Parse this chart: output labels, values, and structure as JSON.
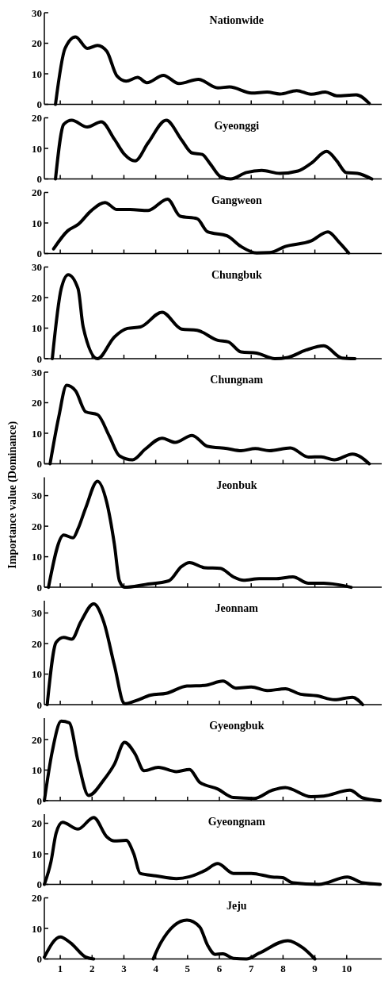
{
  "chart_data": [
    {
      "type": "line",
      "title": "Nationwide",
      "color": "#000000",
      "xlim": [
        0.5,
        11.1
      ],
      "xticks": [
        1,
        2,
        3,
        4,
        5,
        6,
        7,
        8,
        9,
        10
      ],
      "ylim": [
        0,
        30
      ],
      "yticks": [
        0,
        10,
        20,
        30
      ],
      "tick_labels": "y",
      "x": [
        0.85,
        1.15,
        1.48,
        1.85,
        2.17,
        2.46,
        2.78,
        3.07,
        3.43,
        3.72,
        4.24,
        4.73,
        5.34,
        5.95,
        6.32,
        7.01,
        7.5,
        7.9,
        8.43,
        8.88,
        9.33,
        9.69,
        10.3,
        10.71
      ],
      "values": [
        0,
        18.3,
        22.1,
        18.3,
        19.3,
        17.4,
        9.3,
        7.6,
        8.8,
        7.1,
        9.5,
        6.8,
        8.2,
        5.4,
        5.7,
        3.7,
        4.0,
        3.4,
        4.5,
        3.3,
        4.0,
        2.8,
        3.1,
        0.3
      ]
    },
    {
      "type": "line",
      "title": "Gyeonggi",
      "color": "#000000",
      "xlim": [
        0.5,
        11.1
      ],
      "xticks": [
        1,
        2,
        3,
        4,
        5,
        6,
        7,
        8,
        9,
        10
      ],
      "ylim": [
        0,
        20
      ],
      "yticks": [
        0,
        10,
        20
      ],
      "tick_labels": "y",
      "x": [
        0.85,
        1.11,
        1.36,
        1.85,
        2.29,
        2.7,
        3.02,
        3.35,
        3.76,
        4.33,
        4.81,
        5.14,
        5.46,
        5.7,
        6.03,
        6.35,
        6.85,
        7.33,
        7.9,
        8.47,
        8.88,
        9.37,
        9.69,
        9.98,
        10.34,
        10.79
      ],
      "values": [
        0,
        17.9,
        19.2,
        17,
        18.7,
        13,
        8,
        5.9,
        11.8,
        19.2,
        12.8,
        8.5,
        8,
        5.1,
        0.8,
        0,
        2.1,
        2.8,
        1.8,
        2.6,
        5.1,
        9,
        5.9,
        2.1,
        1.8,
        0
      ]
    },
    {
      "type": "line",
      "title": "Gangweon",
      "color": "#000000",
      "xlim": [
        0.5,
        11.1
      ],
      "xticks": [
        1,
        2,
        3,
        4,
        5,
        6,
        7,
        8,
        9,
        10
      ],
      "ylim": [
        0,
        20
      ],
      "yticks": [
        0,
        10,
        20
      ],
      "tick_labels": "y",
      "x": [
        0.79,
        1.24,
        1.56,
        1.97,
        2.41,
        2.78,
        3.19,
        3.76,
        4.37,
        4.77,
        5.3,
        5.63,
        6.24,
        6.68,
        7.17,
        7.58,
        8.07,
        8.88,
        9.41,
        9.77,
        10.06
      ],
      "values": [
        1.5,
        7.5,
        9.5,
        14,
        16.7,
        14.4,
        14.4,
        14.1,
        17.8,
        12.2,
        11.4,
        7.1,
        5.8,
        2.3,
        0.2,
        0.3,
        2.3,
        4.1,
        7.1,
        3.6,
        0.2
      ]
    },
    {
      "type": "line",
      "title": "Chungbuk",
      "color": "#000000",
      "xlim": [
        0.5,
        11.1
      ],
      "xticks": [
        1,
        2,
        3,
        4,
        5,
        6,
        7,
        8,
        9,
        10
      ],
      "ylim": [
        0,
        30
      ],
      "yticks": [
        0,
        10,
        20,
        30
      ],
      "tick_labels": "y",
      "x": [
        0.75,
        1.03,
        1.25,
        1.56,
        1.72,
        2.17,
        2.7,
        3.11,
        3.52,
        4.2,
        4.81,
        5.3,
        5.95,
        6.28,
        6.68,
        7.17,
        7.74,
        8.15,
        8.72,
        9.28,
        9.85,
        10.26
      ],
      "values": [
        0,
        22.9,
        27.5,
        22.9,
        10.4,
        0,
        7.1,
        9.9,
        10.4,
        15.2,
        9.7,
        9.3,
        6,
        5.5,
        2.2,
        1.8,
        0,
        0.4,
        2.8,
        4.2,
        0.2,
        0
      ]
    },
    {
      "type": "line",
      "title": "Chungnam",
      "color": "#000000",
      "xlim": [
        0.5,
        11.1
      ],
      "xticks": [
        1,
        2,
        3,
        4,
        5,
        6,
        7,
        8,
        9,
        10
      ],
      "ylim": [
        0,
        30
      ],
      "yticks": [
        0,
        10,
        20,
        30
      ],
      "tick_labels": "y",
      "x": [
        0.68,
        0.95,
        1.2,
        1.48,
        1.8,
        2.17,
        2.54,
        2.86,
        3.27,
        3.67,
        4.2,
        4.61,
        5.14,
        5.63,
        6.24,
        6.68,
        7.13,
        7.57,
        8.23,
        8.8,
        9.2,
        9.61,
        10.18,
        10.71
      ],
      "values": [
        0,
        15.2,
        25.7,
        23.9,
        17,
        16.1,
        9.1,
        2.6,
        1.3,
        4.8,
        8.4,
        7,
        9.3,
        5.7,
        5,
        4.3,
        5,
        4.3,
        5.2,
        2.2,
        2.3,
        1.3,
        3.2,
        0
      ]
    },
    {
      "type": "line",
      "title": "Jeonbuk",
      "ylabel": "Importance value (Dominance)",
      "color": "#000000",
      "xlim": [
        0.5,
        11.1
      ],
      "xticks": [
        1,
        2,
        3,
        4,
        5,
        6,
        7,
        8,
        9,
        10
      ],
      "ylim": [
        0,
        36
      ],
      "yticks": [
        0,
        10,
        20,
        30
      ],
      "tick_labels": "y",
      "x": [
        0.63,
        1.11,
        1.4,
        1.56,
        1.8,
        2.17,
        2.46,
        2.7,
        2.86,
        3.02,
        3.67,
        4.41,
        4.81,
        5.06,
        5.54,
        6.03,
        6.44,
        6.76,
        7.25,
        7.74,
        8.31,
        8.8,
        9.28,
        9.69,
        10.14
      ],
      "values": [
        0,
        17.1,
        16.2,
        19.2,
        26,
        34.7,
        27.8,
        14.1,
        2.1,
        0,
        0.9,
        2.1,
        6.8,
        8.1,
        6.4,
        6.2,
        3.4,
        2.3,
        2.8,
        2.8,
        3.4,
        1.3,
        1.3,
        0.9,
        0
      ]
    },
    {
      "type": "line",
      "title": "Jeonnam",
      "color": "#000000",
      "xlim": [
        0.5,
        11.1
      ],
      "xticks": [
        1,
        2,
        3,
        4,
        5,
        6,
        7,
        8,
        9,
        10
      ],
      "ylim": [
        0,
        34
      ],
      "yticks": [
        0,
        10,
        20,
        30
      ],
      "tick_labels": "y",
      "x": [
        0.59,
        0.87,
        1.11,
        1.36,
        1.64,
        2.05,
        2.37,
        2.7,
        3.02,
        3.35,
        3.84,
        4.33,
        4.98,
        5.54,
        6.11,
        6.52,
        7.0,
        7.5,
        8.07,
        8.55,
        9.05,
        9.62,
        10.18,
        10.5
      ],
      "values": [
        0,
        20.4,
        22,
        21.4,
        27,
        33,
        27,
        12.9,
        0.3,
        1.2,
        3.1,
        3.7,
        6.1,
        6.3,
        7.7,
        5.4,
        5.8,
        4.6,
        5.2,
        3.4,
        2.9,
        1.6,
        2.4,
        0
      ]
    },
    {
      "type": "line",
      "title": "Gyeongbuk",
      "color": "#000000",
      "xlim": [
        0.5,
        11.1
      ],
      "xticks": [
        1,
        2,
        3,
        4,
        5,
        6,
        7,
        8,
        9,
        10
      ],
      "ylim": [
        0,
        27
      ],
      "yticks": [
        0,
        10,
        20
      ],
      "tick_labels": "y",
      "x": [
        0.5,
        0.75,
        1.03,
        1.28,
        1.56,
        1.89,
        2.37,
        2.7,
        3.02,
        3.35,
        3.63,
        4.08,
        4.65,
        5.06,
        5.38,
        5.95,
        6.44,
        7.09,
        7.66,
        8.07,
        8.88,
        9.28,
        10.1,
        10.5,
        11.05
      ],
      "values": [
        0,
        16.2,
        26,
        25.5,
        12.8,
        1.7,
        6.8,
        11.9,
        19.1,
        15.3,
        9.8,
        10.9,
        9.5,
        10.2,
        6,
        3.8,
        1,
        0.7,
        3.4,
        4.3,
        1.3,
        1.5,
        3.4,
        0.9,
        0
      ]
    },
    {
      "type": "line",
      "title": "Gyeongnam",
      "color": "#000000",
      "xlim": [
        0.5,
        11.1
      ],
      "xticks": [
        1,
        2,
        3,
        4,
        5,
        6,
        7,
        8,
        9,
        10
      ],
      "ylim": [
        0,
        23
      ],
      "yticks": [
        0,
        10,
        20
      ],
      "tick_labels": "y",
      "x": [
        0.5,
        0.71,
        0.87,
        1.07,
        1.56,
        2.05,
        2.46,
        2.7,
        3.07,
        3.31,
        3.51,
        4.0,
        4.65,
        5.06,
        5.54,
        5.95,
        6.44,
        7.0,
        7.66,
        7.98,
        8.31,
        9.12,
        10.02,
        10.5,
        11.05
      ],
      "values": [
        0,
        7.5,
        16.8,
        20.3,
        18.1,
        21.9,
        15.6,
        14.2,
        14.4,
        10,
        3.6,
        2.8,
        1.9,
        2.5,
        4.5,
        6.8,
        3.6,
        3.6,
        2.4,
        2.2,
        0.5,
        0,
        2.4,
        0.5,
        0
      ]
    },
    {
      "type": "line",
      "title": "Jeju",
      "color": "#000000",
      "xlim": [
        0.5,
        11.1
      ],
      "xticks": [
        1,
        2,
        3,
        4,
        5,
        6,
        7,
        8,
        9,
        10
      ],
      "ylim": [
        0,
        20
      ],
      "yticks": [
        0,
        10,
        20
      ],
      "x": [
        0.5,
        1.0,
        1.32,
        1.8,
        2.05,
        3.0,
        3.92,
        4.16,
        4.98,
        5.38,
        5.63,
        5.87,
        6.11,
        6.44,
        6.85,
        7.25,
        8.15,
        8.63,
        9.0
      ],
      "values": [
        0.6,
        7.2,
        5.3,
        0.6,
        0,
        null,
        0,
        5.3,
        12.7,
        10.5,
        4.5,
        1.5,
        1.7,
        0.2,
        0,
        1.9,
        6,
        3.6,
        0
      ]
    }
  ]
}
